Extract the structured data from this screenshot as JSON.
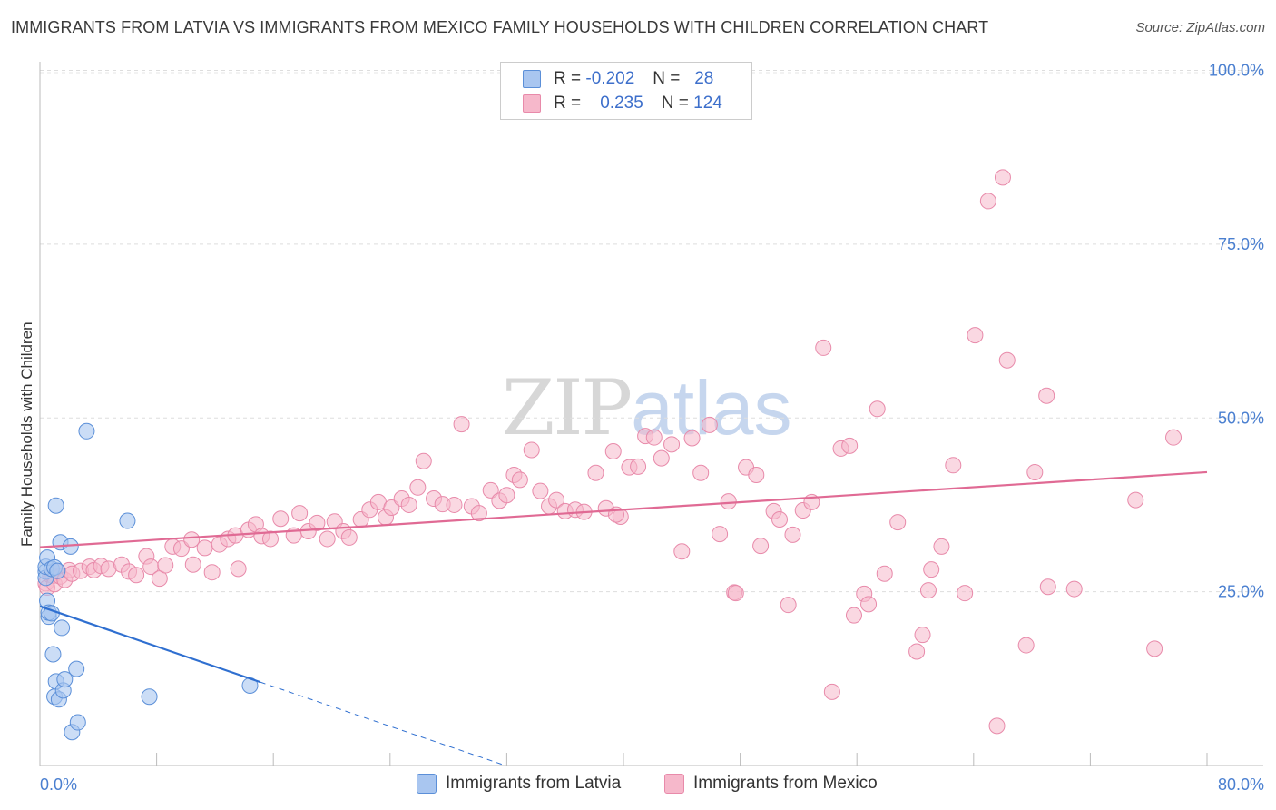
{
  "header": {
    "title": "IMMIGRANTS FROM LATVIA VS IMMIGRANTS FROM MEXICO FAMILY HOUSEHOLDS WITH CHILDREN CORRELATION CHART",
    "source": "Source: ZipAtlas.com"
  },
  "watermark": {
    "zip": "ZIP",
    "atlas": "atlas"
  },
  "legend": {
    "rows": [
      {
        "r_label": "R =",
        "r_value": "-0.202",
        "n_label": "N =",
        "n_value": "28",
        "color": "#a9c6f0"
      },
      {
        "r_label": "R =",
        "r_value": "0.235",
        "n_label": "N =",
        "n_value": "124",
        "color": "#f6b8cb"
      }
    ]
  },
  "colors": {
    "latvia_fill": "#a9c6f0",
    "latvia_stroke": "#5b8fd8",
    "latvia_line": "#2f6fd0",
    "mexico_fill": "#f6b8cb",
    "mexico_stroke": "#e88aaa",
    "mexico_line": "#e06a94",
    "axis_text": "#4a7fd0"
  },
  "chart_data": {
    "type": "scatter",
    "title": "IMMIGRANTS FROM LATVIA VS IMMIGRANTS FROM MEXICO FAMILY HOUSEHOLDS WITH CHILDREN CORRELATION CHART",
    "xlabel": "",
    "ylabel": "Family Households with Children",
    "xlim": [
      0,
      80
    ],
    "ylim": [
      0,
      100
    ],
    "x_tick_labels": [
      "0.0%",
      "80.0%"
    ],
    "y_tick_values": [
      25,
      50,
      75,
      100
    ],
    "y_tick_labels": [
      "25.0%",
      "50.0%",
      "75.0%",
      "100.0%"
    ],
    "grid": true,
    "legend_position": "top-center",
    "series": [
      {
        "name": "Immigrants from Latvia",
        "R": -0.202,
        "N": 28,
        "trend": {
          "x_start": 0,
          "y_start": 22.9,
          "x_solid_end": 15.1,
          "y_solid_end": 12.0,
          "x_dash_end": 31.9,
          "y_dash_end": 0
        },
        "points": [
          [
            0.4,
            27.9
          ],
          [
            0.4,
            27.0
          ],
          [
            0.4,
            28.6
          ],
          [
            0.5,
            23.7
          ],
          [
            0.5,
            29.9
          ],
          [
            0.6,
            21.4
          ],
          [
            0.6,
            22.0
          ],
          [
            0.8,
            21.9
          ],
          [
            0.8,
            28.3
          ],
          [
            0.9,
            16.0
          ],
          [
            1.0,
            28.5
          ],
          [
            1.0,
            9.9
          ],
          [
            1.1,
            37.4
          ],
          [
            1.1,
            12.1
          ],
          [
            1.2,
            28.0
          ],
          [
            1.3,
            9.5
          ],
          [
            1.4,
            32.1
          ],
          [
            1.5,
            19.8
          ],
          [
            1.6,
            10.8
          ],
          [
            1.7,
            12.4
          ],
          [
            2.1,
            31.5
          ],
          [
            2.2,
            4.8
          ],
          [
            2.5,
            13.9
          ],
          [
            2.6,
            6.2
          ],
          [
            3.2,
            48.1
          ],
          [
            6.0,
            35.2
          ],
          [
            7.5,
            9.9
          ],
          [
            14.4,
            11.5
          ]
        ]
      },
      {
        "name": "Immigrants from Mexico",
        "R": 0.235,
        "N": 124,
        "trend": {
          "x_start": 0,
          "y_start": 31.4,
          "x_end": 80,
          "y_end": 42.2
        },
        "points": [
          [
            0.4,
            26.2
          ],
          [
            0.5,
            25.6
          ],
          [
            0.7,
            27.4
          ],
          [
            0.9,
            27.3
          ],
          [
            1.0,
            26.1
          ],
          [
            1.2,
            27.9
          ],
          [
            1.4,
            27.2
          ],
          [
            1.7,
            26.7
          ],
          [
            2.0,
            28.1
          ],
          [
            2.2,
            27.6
          ],
          [
            2.8,
            28.0
          ],
          [
            3.4,
            28.6
          ],
          [
            3.7,
            28.1
          ],
          [
            4.2,
            28.7
          ],
          [
            4.7,
            28.3
          ],
          [
            5.6,
            28.9
          ],
          [
            6.1,
            27.9
          ],
          [
            6.6,
            27.4
          ],
          [
            7.3,
            30.1
          ],
          [
            7.6,
            28.6
          ],
          [
            8.2,
            26.9
          ],
          [
            8.6,
            28.8
          ],
          [
            9.1,
            31.5
          ],
          [
            9.7,
            31.2
          ],
          [
            10.4,
            32.5
          ],
          [
            10.5,
            28.9
          ],
          [
            11.3,
            31.3
          ],
          [
            11.8,
            27.8
          ],
          [
            12.3,
            31.8
          ],
          [
            12.9,
            32.6
          ],
          [
            13.4,
            33.1
          ],
          [
            13.6,
            28.3
          ],
          [
            14.3,
            33.9
          ],
          [
            14.8,
            34.7
          ],
          [
            15.2,
            33.0
          ],
          [
            15.8,
            32.6
          ],
          [
            16.5,
            35.5
          ],
          [
            17.4,
            33.1
          ],
          [
            17.8,
            36.3
          ],
          [
            18.4,
            33.7
          ],
          [
            19.0,
            34.9
          ],
          [
            19.7,
            32.6
          ],
          [
            20.2,
            35.1
          ],
          [
            20.8,
            33.7
          ],
          [
            21.2,
            32.8
          ],
          [
            22.0,
            35.4
          ],
          [
            22.6,
            36.8
          ],
          [
            23.2,
            37.9
          ],
          [
            23.7,
            35.7
          ],
          [
            24.1,
            37.1
          ],
          [
            24.8,
            38.4
          ],
          [
            25.3,
            37.5
          ],
          [
            25.9,
            40.0
          ],
          [
            26.3,
            43.8
          ],
          [
            27.0,
            38.4
          ],
          [
            27.6,
            37.6
          ],
          [
            28.4,
            37.5
          ],
          [
            28.9,
            49.1
          ],
          [
            29.6,
            37.3
          ],
          [
            30.1,
            36.3
          ],
          [
            30.9,
            39.6
          ],
          [
            31.5,
            38.1
          ],
          [
            32.0,
            38.9
          ],
          [
            32.5,
            41.8
          ],
          [
            32.9,
            41.1
          ],
          [
            33.7,
            45.4
          ],
          [
            34.3,
            39.5
          ],
          [
            34.9,
            37.3
          ],
          [
            35.4,
            38.2
          ],
          [
            36.0,
            36.6
          ],
          [
            36.7,
            36.8
          ],
          [
            37.3,
            36.5
          ],
          [
            38.1,
            42.1
          ],
          [
            38.8,
            37.0
          ],
          [
            39.3,
            45.2
          ],
          [
            39.8,
            35.8
          ],
          [
            40.4,
            42.9
          ],
          [
            41.0,
            43.0
          ],
          [
            41.5,
            47.4
          ],
          [
            42.1,
            47.2
          ],
          [
            42.6,
            44.2
          ],
          [
            43.3,
            46.2
          ],
          [
            39.5,
            36.1
          ],
          [
            44.0,
            30.8
          ],
          [
            44.7,
            47.1
          ],
          [
            45.3,
            42.1
          ],
          [
            45.9,
            49.0
          ],
          [
            46.6,
            33.3
          ],
          [
            47.2,
            38.0
          ],
          [
            47.6,
            24.9
          ],
          [
            48.4,
            42.9
          ],
          [
            49.1,
            41.8
          ],
          [
            49.4,
            31.6
          ],
          [
            50.3,
            36.6
          ],
          [
            50.7,
            35.4
          ],
          [
            51.3,
            23.1
          ],
          [
            51.6,
            33.2
          ],
          [
            52.3,
            36.7
          ],
          [
            52.9,
            37.9
          ],
          [
            47.7,
            24.8
          ],
          [
            53.7,
            60.1
          ],
          [
            54.3,
            10.6
          ],
          [
            54.9,
            45.6
          ],
          [
            55.5,
            46.0
          ],
          [
            55.8,
            21.6
          ],
          [
            56.5,
            24.7
          ],
          [
            56.8,
            23.2
          ],
          [
            57.4,
            51.3
          ],
          [
            57.9,
            27.6
          ],
          [
            58.8,
            35.0
          ],
          [
            60.1,
            16.4
          ],
          [
            60.5,
            18.8
          ],
          [
            60.9,
            25.2
          ],
          [
            61.1,
            28.2
          ],
          [
            61.8,
            31.5
          ],
          [
            62.6,
            43.2
          ],
          [
            63.4,
            24.8
          ],
          [
            64.1,
            61.9
          ],
          [
            65.0,
            81.2
          ],
          [
            65.6,
            5.7
          ],
          [
            66.0,
            84.6
          ],
          [
            66.3,
            58.3
          ],
          [
            67.6,
            17.3
          ],
          [
            68.2,
            42.2
          ],
          [
            69.0,
            53.2
          ],
          [
            69.1,
            25.7
          ],
          [
            70.9,
            25.4
          ],
          [
            75.1,
            38.2
          ],
          [
            76.4,
            16.8
          ],
          [
            77.7,
            47.2
          ]
        ]
      }
    ]
  },
  "axes": {
    "y_label": "Family Households with Children",
    "x_min_label": "0.0%",
    "x_max_label": "80.0%"
  },
  "bottom_legend": {
    "items": [
      {
        "label": "Immigrants from Latvia"
      },
      {
        "label": "Immigrants from Mexico"
      }
    ]
  }
}
